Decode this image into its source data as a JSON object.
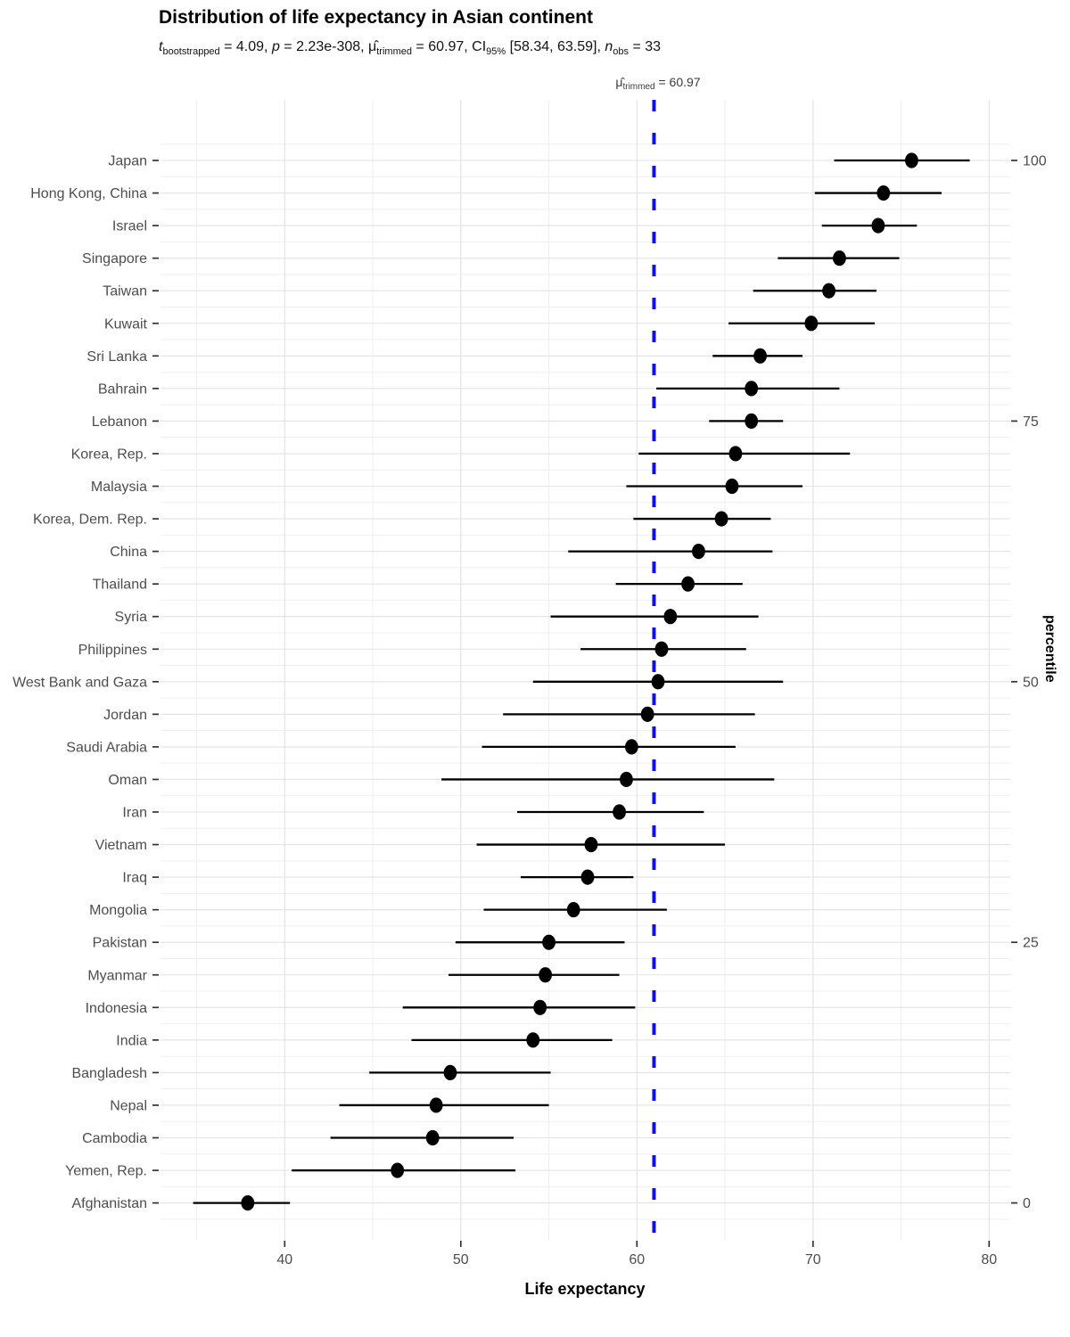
{
  "title": "Distribution of life expectancy in Asian continent",
  "subtitle_segments": [
    {
      "text": "t",
      "style": "it"
    },
    {
      "text": "bootstrapped",
      "style": "sub"
    },
    {
      "text": " = 4.09, ",
      "style": "n"
    },
    {
      "text": "p",
      "style": "it"
    },
    {
      "text": " = 2.23e-308, ",
      "style": "n"
    },
    {
      "text": "μ̂",
      "style": "n"
    },
    {
      "text": "trimmed",
      "style": "sub"
    },
    {
      "text": " = 60.97, CI",
      "style": "n"
    },
    {
      "text": "95%",
      "style": "sub"
    },
    {
      "text": " [58.34, 63.59], ",
      "style": "n"
    },
    {
      "text": "n",
      "style": "it"
    },
    {
      "text": "obs",
      "style": "sub"
    },
    {
      "text": " = 33",
      "style": "n"
    }
  ],
  "reference_line": {
    "value": 60.97,
    "label_segments": [
      {
        "text": "μ̂",
        "style": "n"
      },
      {
        "text": "trimmed",
        "style": "sub"
      },
      {
        "text": " = 60.97",
        "style": "n"
      }
    ]
  },
  "x_axis": {
    "title": "Life expectancy",
    "major_ticks": [
      40,
      50,
      60,
      70,
      80
    ],
    "minor_ticks": [
      35,
      45,
      55,
      65,
      75
    ]
  },
  "right_axis": {
    "title": "percentile",
    "ticks": [
      {
        "label": "100",
        "row": 0
      },
      {
        "label": "75",
        "row": 8
      },
      {
        "label": "50",
        "row": 16
      },
      {
        "label": "25",
        "row": 24
      },
      {
        "label": "0",
        "row": 32
      }
    ]
  },
  "colors": {
    "reference_line": "#0f0fe8",
    "point": "#000000",
    "error_bar": "#000000",
    "grid_major": "#e3e3e3",
    "grid_minor": "#efefef",
    "axis_text": "#4d4d4d",
    "tick_mark": "#333333",
    "heading_text": "#000000"
  },
  "chart_data": {
    "type": "scatter",
    "subtype": "dot-plot-with-error-bars",
    "title": "Distribution of life expectancy in Asian continent",
    "xlabel": "Life expectancy",
    "ylabel_right": "percentile",
    "xlim": [
      33,
      81.2
    ],
    "grid": true,
    "reference_value": 60.97,
    "points": [
      {
        "country": "Japan",
        "mean": 75.6,
        "ci_low": 71.2,
        "ci_high": 78.9
      },
      {
        "country": "Hong Kong, China",
        "mean": 74.0,
        "ci_low": 70.1,
        "ci_high": 77.3
      },
      {
        "country": "Israel",
        "mean": 73.7,
        "ci_low": 70.5,
        "ci_high": 75.9
      },
      {
        "country": "Singapore",
        "mean": 71.5,
        "ci_low": 68.0,
        "ci_high": 74.9
      },
      {
        "country": "Taiwan",
        "mean": 70.9,
        "ci_low": 66.6,
        "ci_high": 73.6
      },
      {
        "country": "Kuwait",
        "mean": 69.9,
        "ci_low": 65.2,
        "ci_high": 73.5
      },
      {
        "country": "Sri Lanka",
        "mean": 67.0,
        "ci_low": 64.3,
        "ci_high": 69.4
      },
      {
        "country": "Bahrain",
        "mean": 66.5,
        "ci_low": 61.1,
        "ci_high": 71.5
      },
      {
        "country": "Lebanon",
        "mean": 66.5,
        "ci_low": 64.1,
        "ci_high": 68.3
      },
      {
        "country": "Korea, Rep.",
        "mean": 65.6,
        "ci_low": 60.1,
        "ci_high": 72.1
      },
      {
        "country": "Malaysia",
        "mean": 65.4,
        "ci_low": 59.4,
        "ci_high": 69.4
      },
      {
        "country": "Korea, Dem. Rep.",
        "mean": 64.8,
        "ci_low": 59.8,
        "ci_high": 67.6
      },
      {
        "country": "China",
        "mean": 63.5,
        "ci_low": 56.1,
        "ci_high": 67.7
      },
      {
        "country": "Thailand",
        "mean": 62.9,
        "ci_low": 58.8,
        "ci_high": 66.0
      },
      {
        "country": "Syria",
        "mean": 61.9,
        "ci_low": 55.1,
        "ci_high": 66.9
      },
      {
        "country": "Philippines",
        "mean": 61.4,
        "ci_low": 56.8,
        "ci_high": 66.2
      },
      {
        "country": "West Bank and Gaza",
        "mean": 61.2,
        "ci_low": 54.1,
        "ci_high": 68.3
      },
      {
        "country": "Jordan",
        "mean": 60.6,
        "ci_low": 52.4,
        "ci_high": 66.7
      },
      {
        "country": "Saudi Arabia",
        "mean": 59.7,
        "ci_low": 51.2,
        "ci_high": 65.6
      },
      {
        "country": "Oman",
        "mean": 59.4,
        "ci_low": 48.9,
        "ci_high": 67.8
      },
      {
        "country": "Iran",
        "mean": 59.0,
        "ci_low": 53.2,
        "ci_high": 63.8
      },
      {
        "country": "Vietnam",
        "mean": 57.4,
        "ci_low": 50.9,
        "ci_high": 65.0
      },
      {
        "country": "Iraq",
        "mean": 57.2,
        "ci_low": 53.4,
        "ci_high": 59.8
      },
      {
        "country": "Mongolia",
        "mean": 56.4,
        "ci_low": 51.3,
        "ci_high": 61.7
      },
      {
        "country": "Pakistan",
        "mean": 55.0,
        "ci_low": 49.7,
        "ci_high": 59.3
      },
      {
        "country": "Myanmar",
        "mean": 54.8,
        "ci_low": 49.3,
        "ci_high": 59.0
      },
      {
        "country": "Indonesia",
        "mean": 54.5,
        "ci_low": 46.7,
        "ci_high": 59.9
      },
      {
        "country": "India",
        "mean": 54.1,
        "ci_low": 47.2,
        "ci_high": 58.6
      },
      {
        "country": "Bangladesh",
        "mean": 49.4,
        "ci_low": 44.8,
        "ci_high": 55.1
      },
      {
        "country": "Nepal",
        "mean": 48.6,
        "ci_low": 43.1,
        "ci_high": 55.0
      },
      {
        "country": "Cambodia",
        "mean": 48.4,
        "ci_low": 42.6,
        "ci_high": 53.0
      },
      {
        "country": "Yemen, Rep.",
        "mean": 46.4,
        "ci_low": 40.4,
        "ci_high": 53.1
      },
      {
        "country": "Afghanistan",
        "mean": 37.9,
        "ci_low": 34.8,
        "ci_high": 40.3
      }
    ]
  }
}
